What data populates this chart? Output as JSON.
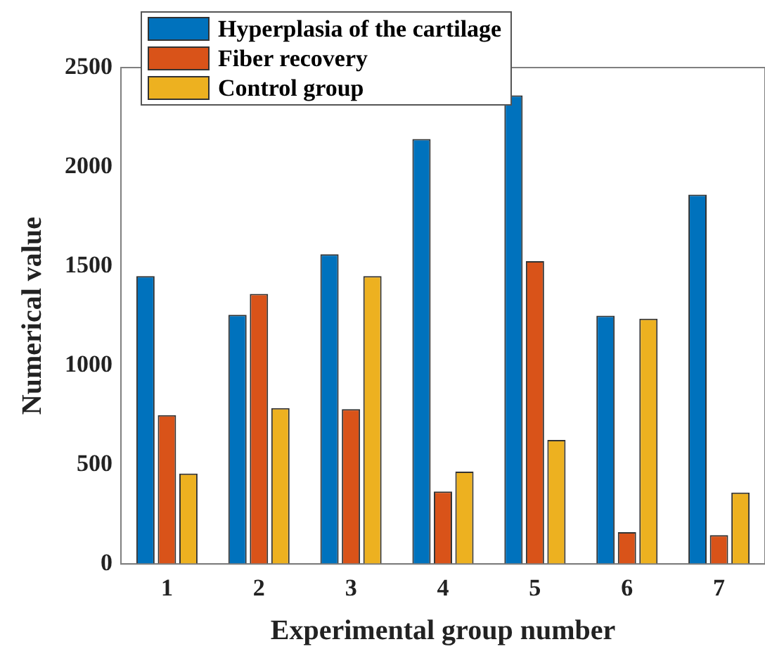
{
  "chart_data": {
    "type": "bar",
    "xlabel": "Experimental group number",
    "ylabel": "Numerical value",
    "categories": [
      "1",
      "2",
      "3",
      "4",
      "5",
      "6",
      "7"
    ],
    "series": [
      {
        "name": "Hyperplasia of the cartilage",
        "color": "#0072bd",
        "values": [
          1450,
          1255,
          1560,
          2140,
          2360,
          1250,
          1860
        ]
      },
      {
        "name": "Fiber recovery",
        "color": "#d95319",
        "values": [
          750,
          1360,
          780,
          365,
          1525,
          160,
          145
        ]
      },
      {
        "name": "Control group",
        "color": "#edb120",
        "values": [
          455,
          785,
          1450,
          465,
          625,
          1235,
          360
        ]
      }
    ],
    "ylim": [
      0,
      2500
    ],
    "yticks": [
      0,
      500,
      1000,
      1500,
      2000,
      2500
    ],
    "grid": false,
    "legend": "top left"
  }
}
